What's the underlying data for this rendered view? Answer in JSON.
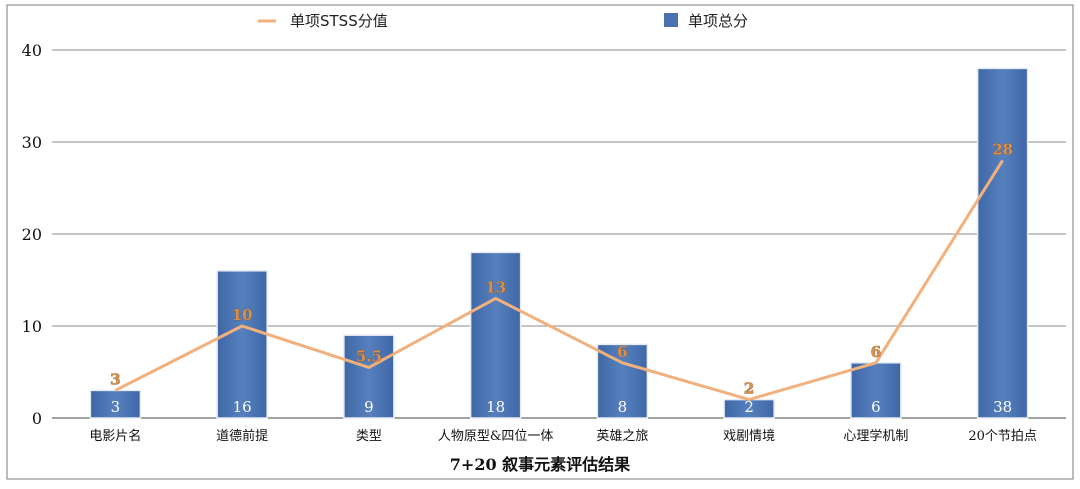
{
  "chart_data": {
    "type": "bar",
    "title": "7+20 叙事元素评估结果",
    "categories": [
      "电影片名",
      "道德前提",
      "类型",
      "人物原型&四位一体",
      "英雄之旅",
      "戏剧情境",
      "心理学机制",
      "20个节拍点"
    ],
    "series": [
      {
        "name": "单项总分",
        "type": "bar",
        "color": "#4a72b0",
        "values": [
          3,
          16,
          9,
          18,
          8,
          2,
          6,
          38
        ]
      },
      {
        "name": "单项STSS分值",
        "type": "line",
        "color": "#f2b07d",
        "values": [
          3,
          10,
          5.5,
          13,
          6,
          2,
          6,
          28
        ]
      }
    ],
    "ylim": [
      0,
      40
    ],
    "yticks": [
      "0",
      "10",
      "20",
      "30",
      "40"
    ],
    "grid": true,
    "legend_position": "top"
  }
}
